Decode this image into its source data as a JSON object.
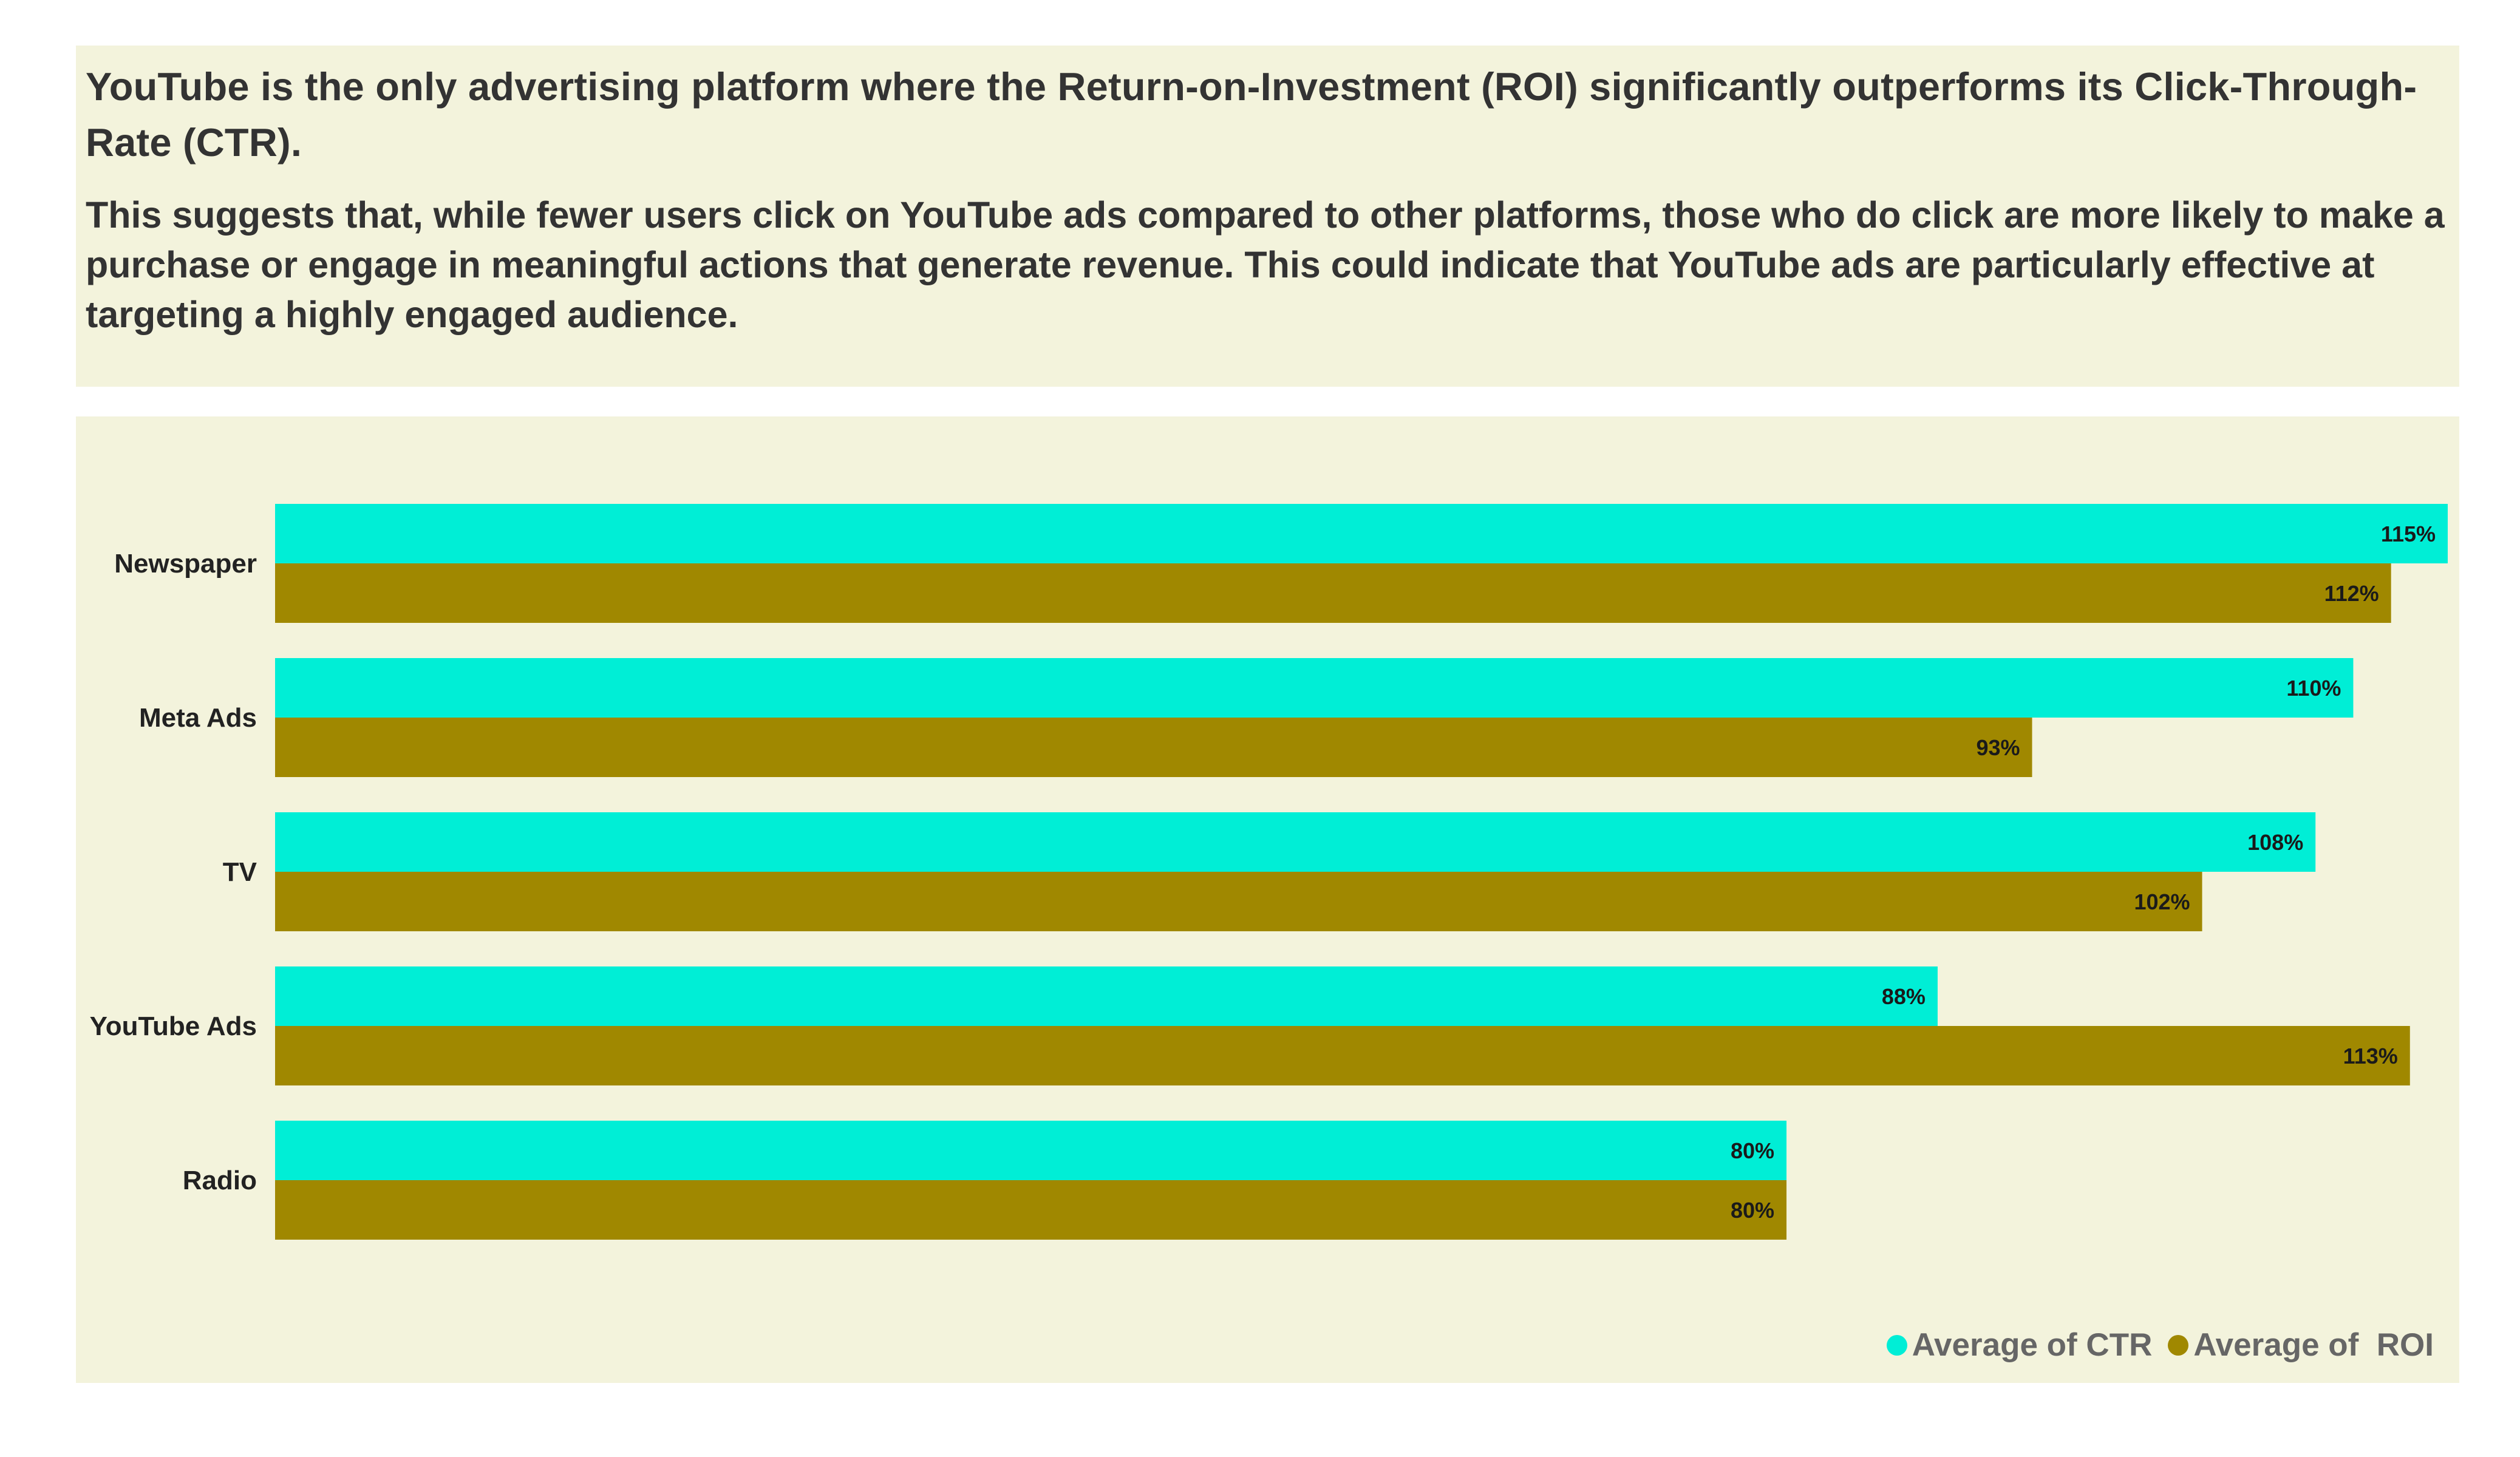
{
  "header": {
    "title": "YouTube is the only advertising platform where the Return-on-Investment (ROI) significantly outperforms its Click-Through-Rate (CTR).",
    "subtitle": "This suggests that, while fewer users click on YouTube ads compared to other platforms, those who do click are more likely to make a purchase or engage in meaningful actions that generate revenue. This could indicate that YouTube ads are particularly effective at targeting a highly engaged audience."
  },
  "chart_data": {
    "type": "bar",
    "orientation": "horizontal",
    "categories": [
      "Newspaper",
      "Meta Ads",
      "TV",
      "YouTube Ads",
      "Radio"
    ],
    "series": [
      {
        "name": "Average of CTR",
        "color": "#00eed6",
        "values": [
          115,
          110,
          108,
          88,
          80
        ],
        "labels": [
          "115%",
          "110%",
          "108%",
          "88%",
          "80%"
        ]
      },
      {
        "name": "Average of  ROI",
        "color": "#a08800",
        "values": [
          112,
          93,
          102,
          113,
          80
        ],
        "labels": [
          "112%",
          "93%",
          "102%",
          "113%",
          "80%"
        ]
      }
    ],
    "xlim": [
      0,
      115
    ],
    "grid": false,
    "legend_position": "bottom-right"
  }
}
